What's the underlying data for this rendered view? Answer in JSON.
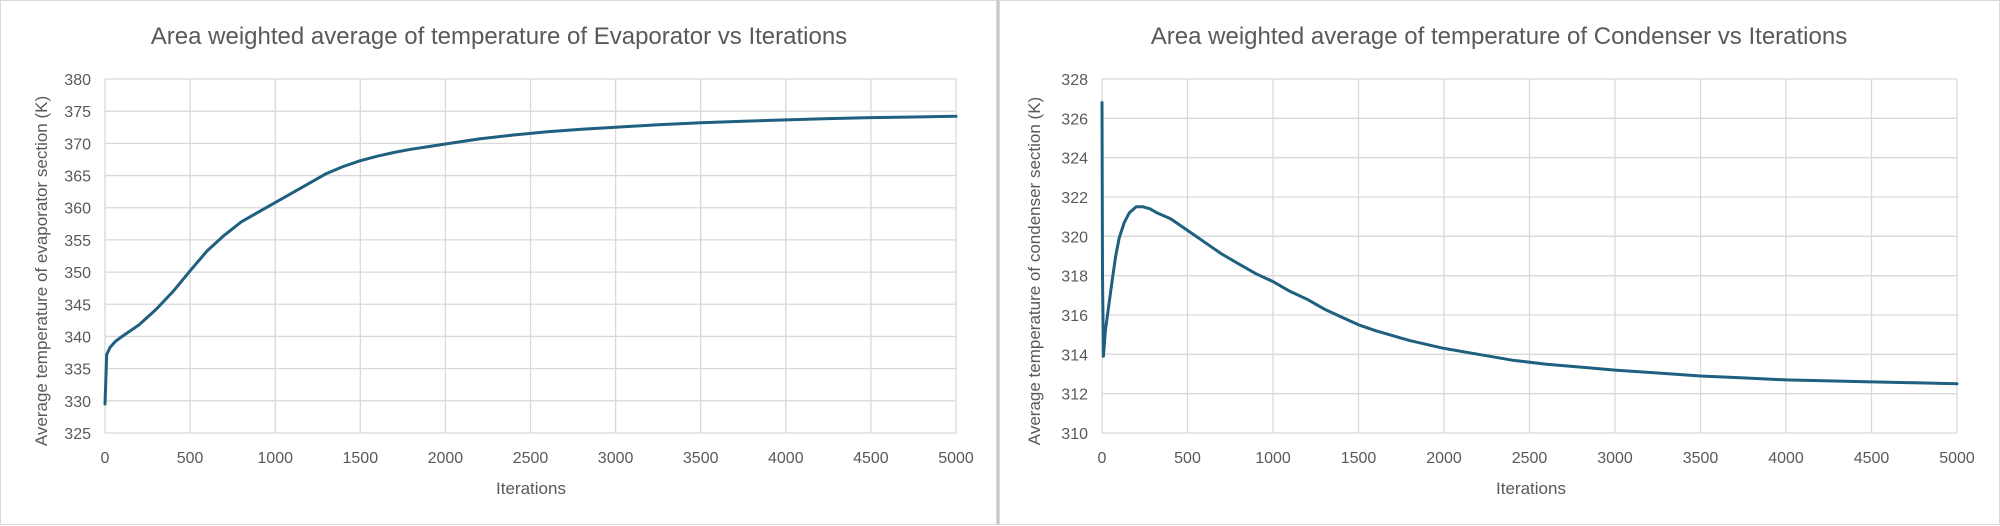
{
  "colors": {
    "series": "#1f5f7f",
    "grid": "#d9d9d9",
    "text": "#595959"
  },
  "chart_data": [
    {
      "type": "line",
      "title": "Area weighted average of temperature of Evaporator vs Iterations",
      "xlabel": "Iterations",
      "ylabel": "Average temperature of evaporator section (K)",
      "xlim": [
        0,
        5000
      ],
      "ylim": [
        325,
        380
      ],
      "x_ticks": [
        0,
        500,
        1000,
        1500,
        2000,
        2500,
        3000,
        3500,
        4000,
        4500,
        5000
      ],
      "y_ticks": [
        325,
        330,
        335,
        340,
        345,
        350,
        355,
        360,
        365,
        370,
        375,
        380
      ],
      "grid": true,
      "legend": "none",
      "series": [
        {
          "x": [
            0,
            10,
            30,
            60,
            100,
            200,
            300,
            400,
            500,
            600,
            700,
            800,
            900,
            1000,
            1100,
            1200,
            1300,
            1400,
            1500,
            1600,
            1700,
            1800,
            1900,
            2000,
            2200,
            2400,
            2600,
            2800,
            3000,
            3250,
            3500,
            3750,
            4000,
            4250,
            4500,
            4750,
            5000
          ],
          "values": [
            329.5,
            337.2,
            338.3,
            339.2,
            340.0,
            341.8,
            344.2,
            347.0,
            350.2,
            353.3,
            355.7,
            357.8,
            359.3,
            360.8,
            362.3,
            363.8,
            365.3,
            366.4,
            367.3,
            368.0,
            368.6,
            369.1,
            369.5,
            369.9,
            370.7,
            371.3,
            371.8,
            372.2,
            372.5,
            372.9,
            373.2,
            373.45,
            373.65,
            373.85,
            374.0,
            374.1,
            374.2
          ]
        }
      ]
    },
    {
      "type": "line",
      "title": "Area weighted average of temperature of Condenser vs Iterations",
      "xlabel": "Iterations",
      "ylabel": "Average temperature of condenser section (K)",
      "xlim": [
        0,
        5000
      ],
      "ylim": [
        310,
        328
      ],
      "x_ticks": [
        0,
        500,
        1000,
        1500,
        2000,
        2500,
        3000,
        3500,
        4000,
        4500,
        5000
      ],
      "y_ticks": [
        310,
        312,
        314,
        316,
        318,
        320,
        322,
        324,
        326,
        328
      ],
      "grid": true,
      "legend": "none",
      "series": [
        {
          "x": [
            0,
            3,
            8,
            20,
            40,
            60,
            80,
            100,
            130,
            160,
            200,
            240,
            280,
            320,
            400,
            500,
            600,
            700,
            800,
            900,
            1000,
            1100,
            1200,
            1300,
            1400,
            1500,
            1600,
            1800,
            2000,
            2200,
            2400,
            2600,
            2800,
            3000,
            3250,
            3500,
            3750,
            4000,
            4250,
            4500,
            4750,
            5000
          ],
          "values": [
            326.8,
            318.0,
            313.9,
            315.2,
            316.5,
            317.8,
            319.0,
            319.9,
            320.7,
            321.2,
            321.5,
            321.5,
            321.4,
            321.2,
            320.9,
            320.3,
            319.7,
            319.1,
            318.6,
            318.1,
            317.7,
            317.2,
            316.8,
            316.3,
            315.9,
            315.5,
            315.2,
            314.7,
            314.3,
            314.0,
            313.7,
            313.5,
            313.35,
            313.2,
            313.05,
            312.9,
            312.8,
            312.7,
            312.65,
            312.6,
            312.55,
            312.5
          ]
        }
      ]
    }
  ]
}
